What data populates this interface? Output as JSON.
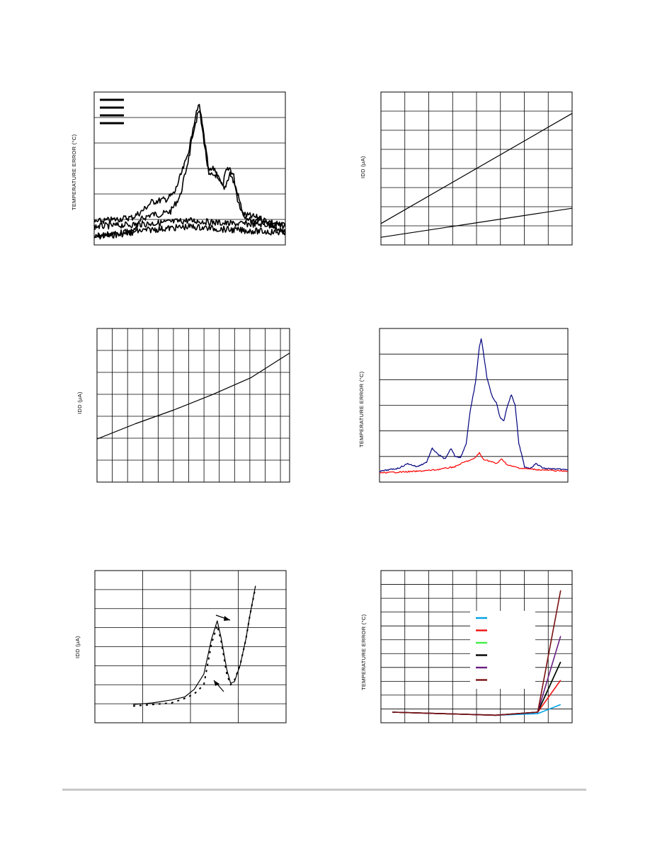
{
  "page": {
    "footer_rule_color": "#c8c8c8"
  },
  "charts": [
    {
      "id": "chart1",
      "chart_data": {
        "type": "line",
        "title": "",
        "ylabel": "TEMPERATURE ERROR (°C)",
        "xlabel": "",
        "x_divisions": 1,
        "y_divisions": 6,
        "legend": {
          "placement": "top-left",
          "entries": 4
        },
        "grid": true,
        "noise": true,
        "series": [
          {
            "color": "#000000",
            "points": [
              [
                0,
                0.05
              ],
              [
                0.2,
                0.08
              ],
              [
                0.25,
                0.17
              ],
              [
                0.3,
                0.2
              ],
              [
                0.35,
                0.2
              ],
              [
                0.4,
                0.22
              ],
              [
                0.45,
                0.32
              ],
              [
                0.5,
                0.6
              ],
              [
                0.53,
                0.85
              ],
              [
                0.55,
                0.91
              ],
              [
                0.57,
                0.75
              ],
              [
                0.6,
                0.48
              ],
              [
                0.63,
                0.5
              ],
              [
                0.65,
                0.44
              ],
              [
                0.67,
                0.38
              ],
              [
                0.69,
                0.48
              ],
              [
                0.71,
                0.5
              ],
              [
                0.73,
                0.45
              ],
              [
                0.75,
                0.3
              ],
              [
                0.78,
                0.2
              ],
              [
                0.82,
                0.16
              ],
              [
                0.87,
                0.17
              ],
              [
                0.9,
                0.14
              ],
              [
                1,
                0.08
              ]
            ]
          },
          {
            "color": "#000000",
            "points": [
              [
                0,
                0.15
              ],
              [
                0.2,
                0.18
              ],
              [
                0.25,
                0.22
              ],
              [
                0.3,
                0.28
              ],
              [
                0.38,
                0.3
              ],
              [
                0.42,
                0.34
              ],
              [
                0.48,
                0.55
              ],
              [
                0.53,
                0.8
              ],
              [
                0.55,
                0.88
              ],
              [
                0.57,
                0.72
              ],
              [
                0.6,
                0.45
              ],
              [
                0.64,
                0.46
              ],
              [
                0.68,
                0.36
              ],
              [
                0.71,
                0.47
              ],
              [
                0.74,
                0.38
              ],
              [
                0.78,
                0.2
              ],
              [
                0.85,
                0.18
              ],
              [
                1,
                0.12
              ]
            ]
          },
          {
            "color": "#000000",
            "points": [
              [
                0,
                0.12
              ],
              [
                0.3,
                0.14
              ],
              [
                0.5,
                0.16
              ],
              [
                0.7,
                0.14
              ],
              [
                1,
                0.13
              ]
            ]
          },
          {
            "color": "#000000",
            "points": [
              [
                0,
                0.06
              ],
              [
                0.3,
                0.1
              ],
              [
                0.5,
                0.12
              ],
              [
                0.7,
                0.1
              ],
              [
                1,
                0.08
              ]
            ]
          }
        ]
      }
    },
    {
      "id": "chart2",
      "chart_data": {
        "type": "line",
        "title": "",
        "ylabel": "IDD (µA)",
        "xlabel": "",
        "x_divisions": 8,
        "y_divisions": 8,
        "grid": true,
        "series": [
          {
            "color": "#000000",
            "points": [
              [
                0,
                0.14
              ],
              [
                1,
                0.86
              ]
            ]
          },
          {
            "color": "#000000",
            "points": [
              [
                0,
                0.05
              ],
              [
                1,
                0.24
              ]
            ]
          }
        ]
      }
    },
    {
      "id": "chart3",
      "chart_data": {
        "type": "line",
        "title": "",
        "ylabel": "IDD (µA)",
        "xlabel": "",
        "x_divisions": 12.6,
        "y_divisions": 7,
        "grid": true,
        "series": [
          {
            "color": "#000000",
            "points": [
              [
                0,
                0.28
              ],
              [
                0.2,
                0.38
              ],
              [
                0.4,
                0.47
              ],
              [
                0.6,
                0.57
              ],
              [
                0.8,
                0.68
              ],
              [
                1,
                0.84
              ]
            ]
          }
        ]
      }
    },
    {
      "id": "chart4",
      "chart_data": {
        "type": "line",
        "title": "",
        "ylabel": "TEMPERATURE ERROR (°C)",
        "xlabel": "",
        "x_divisions": 1,
        "y_divisions": 6,
        "grid": true,
        "noise": true,
        "series": [
          {
            "color": "#00007f",
            "points": [
              [
                0,
                0.07
              ],
              [
                0.1,
                0.09
              ],
              [
                0.15,
                0.12
              ],
              [
                0.2,
                0.1
              ],
              [
                0.25,
                0.13
              ],
              [
                0.28,
                0.22
              ],
              [
                0.31,
                0.18
              ],
              [
                0.35,
                0.15
              ],
              [
                0.38,
                0.22
              ],
              [
                0.4,
                0.17
              ],
              [
                0.43,
                0.16
              ],
              [
                0.46,
                0.25
              ],
              [
                0.48,
                0.45
              ],
              [
                0.51,
                0.65
              ],
              [
                0.53,
                0.88
              ],
              [
                0.54,
                0.93
              ],
              [
                0.55,
                0.86
              ],
              [
                0.57,
                0.68
              ],
              [
                0.6,
                0.55
              ],
              [
                0.62,
                0.52
              ],
              [
                0.64,
                0.42
              ],
              [
                0.66,
                0.4
              ],
              [
                0.68,
                0.5
              ],
              [
                0.7,
                0.57
              ],
              [
                0.72,
                0.5
              ],
              [
                0.74,
                0.25
              ],
              [
                0.77,
                0.1
              ],
              [
                0.8,
                0.09
              ],
              [
                0.83,
                0.12
              ],
              [
                0.87,
                0.09
              ],
              [
                1,
                0.08
              ]
            ]
          },
          {
            "color": "#ff0000",
            "points": [
              [
                0,
                0.06
              ],
              [
                0.2,
                0.07
              ],
              [
                0.3,
                0.08
              ],
              [
                0.4,
                0.1
              ],
              [
                0.45,
                0.13
              ],
              [
                0.5,
                0.15
              ],
              [
                0.53,
                0.19
              ],
              [
                0.55,
                0.15
              ],
              [
                0.6,
                0.13
              ],
              [
                0.62,
                0.12
              ],
              [
                0.65,
                0.15
              ],
              [
                0.68,
                0.11
              ],
              [
                0.75,
                0.09
              ],
              [
                0.85,
                0.08
              ],
              [
                1,
                0.07
              ]
            ]
          }
        ]
      }
    },
    {
      "id": "chart5",
      "chart_data": {
        "type": "line",
        "title": "",
        "ylabel": "IDD (µA)",
        "xlabel": "",
        "x_divisions": 4,
        "y_divisions": 8,
        "grid": true,
        "annotations": [
          "arrow-upper",
          "arrow-lower"
        ],
        "series": [
          {
            "color": "#000000",
            "style": "solid",
            "points": [
              [
                0.2,
                0.12
              ],
              [
                0.3,
                0.13
              ],
              [
                0.4,
                0.15
              ],
              [
                0.47,
                0.17
              ],
              [
                0.52,
                0.22
              ],
              [
                0.57,
                0.32
              ],
              [
                0.61,
                0.55
              ],
              [
                0.64,
                0.67
              ],
              [
                0.66,
                0.56
              ],
              [
                0.69,
                0.35
              ],
              [
                0.71,
                0.26
              ],
              [
                0.73,
                0.27
              ],
              [
                0.76,
                0.38
              ],
              [
                0.79,
                0.55
              ],
              [
                0.81,
                0.7
              ],
              [
                0.84,
                0.9
              ]
            ]
          },
          {
            "color": "#000000",
            "style": "dashed",
            "points": [
              [
                0.2,
                0.11
              ],
              [
                0.3,
                0.12
              ],
              [
                0.4,
                0.13
              ],
              [
                0.47,
                0.16
              ],
              [
                0.52,
                0.19
              ],
              [
                0.57,
                0.25
              ],
              [
                0.61,
                0.52
              ],
              [
                0.64,
                0.64
              ],
              [
                0.66,
                0.54
              ],
              [
                0.69,
                0.32
              ],
              [
                0.71,
                0.25
              ],
              [
                0.73,
                0.28
              ],
              [
                0.76,
                0.38
              ],
              [
                0.79,
                0.55
              ],
              [
                0.81,
                0.7
              ],
              [
                0.84,
                0.89
              ]
            ]
          }
        ]
      }
    },
    {
      "id": "chart6",
      "chart_data": {
        "type": "line",
        "title": "",
        "ylabel": "TEMPERATURE ERROR (°C)",
        "xlabel": "",
        "x_divisions": 8,
        "y_divisions": 11,
        "grid": true,
        "legend": {
          "placement": "center-right",
          "entries": 6
        },
        "series": [
          {
            "color": "#00a0e8",
            "points": [
              [
                0.06,
                0.07
              ],
              [
                0.6,
                0.05
              ],
              [
                0.82,
                0.06
              ],
              [
                0.94,
                0.12
              ]
            ]
          },
          {
            "color": "#ee1111",
            "points": [
              [
                0.06,
                0.07
              ],
              [
                0.6,
                0.05
              ],
              [
                0.82,
                0.07
              ],
              [
                0.94,
                0.28
              ]
            ]
          },
          {
            "color": "#44ee44",
            "points": [
              [
                0.06,
                0.07
              ],
              [
                0.6,
                0.05
              ],
              [
                0.82,
                0.07
              ],
              [
                0.94,
                0.4
              ]
            ]
          },
          {
            "color": "#000000",
            "points": [
              [
                0.06,
                0.07
              ],
              [
                0.6,
                0.05
              ],
              [
                0.82,
                0.07
              ],
              [
                0.94,
                0.4
              ]
            ]
          },
          {
            "color": "#6a2080",
            "points": [
              [
                0.06,
                0.07
              ],
              [
                0.6,
                0.05
              ],
              [
                0.82,
                0.07
              ],
              [
                0.94,
                0.57
              ]
            ]
          },
          {
            "color": "#7a1010",
            "points": [
              [
                0.06,
                0.07
              ],
              [
                0.6,
                0.05
              ],
              [
                0.82,
                0.07
              ],
              [
                0.94,
                0.87
              ]
            ]
          }
        ]
      }
    }
  ]
}
